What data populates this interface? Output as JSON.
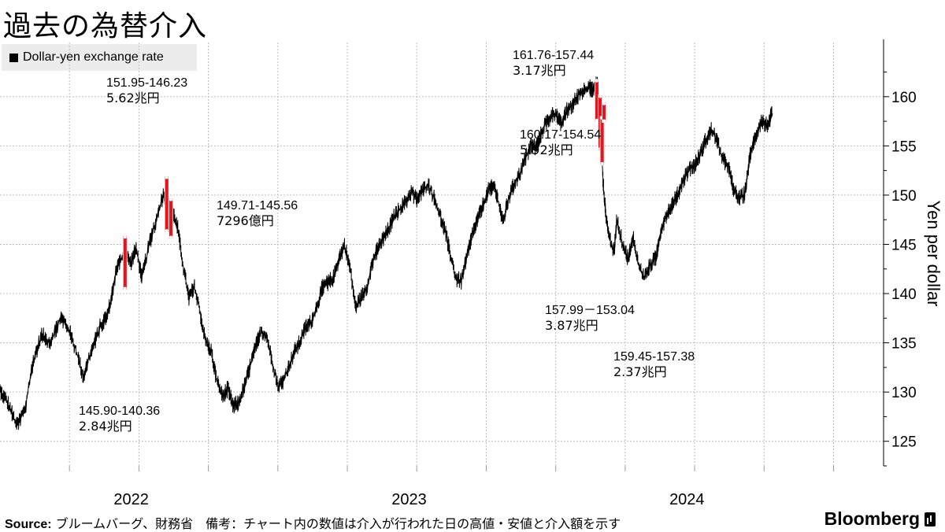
{
  "title": "過去の為替介入",
  "legend": "Dollar-yen exchange rate",
  "source_label": "Source:",
  "source_text": " ブルームバーグ、財務省　備考：チャート内の数値は介入が行われた日の高値・安値と介入額を示す",
  "brand": "Bloomberg",
  "brand_icon": "bloomberg-terminal-icon",
  "chart_data": {
    "type": "line",
    "title": "過去の為替介入",
    "ylabel": "Yen per dollar",
    "xlabel": "",
    "ylim": [
      122.5,
      165.5
    ],
    "xlim": [
      2021.5,
      2024.68
    ],
    "yticks": [
      125,
      130,
      135,
      140,
      145,
      150,
      155,
      160
    ],
    "xticks": [
      {
        "label": "2022",
        "x": 2022.0
      },
      {
        "label": "2023",
        "x": 2023.0
      },
      {
        "label": "2024",
        "x": 2024.0
      }
    ],
    "grid": true,
    "legend_position": "top-left",
    "line_color": "#000000",
    "highlight_color": "#e8141c",
    "series": [
      {
        "name": "Dollar-yen exchange rate",
        "points": [
          [
            2021.5,
            130.2
          ],
          [
            2021.53,
            128.8
          ],
          [
            2021.56,
            126.6
          ],
          [
            2021.59,
            128.2
          ],
          [
            2021.62,
            133.2
          ],
          [
            2021.65,
            135.8
          ],
          [
            2021.68,
            135.1
          ],
          [
            2021.72,
            137.6
          ],
          [
            2021.75,
            136.2
          ],
          [
            2021.78,
            133.6
          ],
          [
            2021.8,
            131.6
          ],
          [
            2021.83,
            134.2
          ],
          [
            2021.86,
            136.6
          ],
          [
            2021.89,
            138.1
          ],
          [
            2021.92,
            142.6
          ],
          [
            2021.95,
            144.2
          ],
          [
            2021.97,
            143.1
          ],
          [
            2021.99,
            144.6
          ],
          [
            2022.01,
            141.6
          ],
          [
            2022.04,
            145.3
          ],
          [
            2022.07,
            148.2
          ],
          [
            2022.09,
            150.3
          ],
          [
            2022.1,
            147.6
          ],
          [
            2022.12,
            148.6
          ],
          [
            2022.14,
            146.6
          ],
          [
            2022.16,
            142.6
          ],
          [
            2022.18,
            139.6
          ],
          [
            2022.2,
            140.6
          ],
          [
            2022.22,
            138.1
          ],
          [
            2022.24,
            135.1
          ],
          [
            2022.26,
            134.2
          ],
          [
            2022.28,
            131.2
          ],
          [
            2022.3,
            129.6
          ],
          [
            2022.32,
            130.3
          ],
          [
            2022.34,
            128.6
          ],
          [
            2022.36,
            128.9
          ],
          [
            2022.38,
            130.6
          ],
          [
            2022.4,
            132.6
          ],
          [
            2022.42,
            134.6
          ],
          [
            2022.44,
            136.2
          ],
          [
            2022.46,
            135.6
          ],
          [
            2022.48,
            133.1
          ],
          [
            2022.5,
            130.6
          ],
          [
            2022.52,
            131.1
          ],
          [
            2022.54,
            132.6
          ],
          [
            2022.56,
            134.1
          ],
          [
            2022.58,
            135.1
          ],
          [
            2022.6,
            136.6
          ],
          [
            2022.62,
            137.1
          ],
          [
            2022.64,
            138.6
          ],
          [
            2022.66,
            140.6
          ],
          [
            2022.68,
            141.1
          ],
          [
            2022.7,
            141.6
          ],
          [
            2022.72,
            143.6
          ],
          [
            2022.74,
            144.9
          ],
          [
            2022.76,
            142.6
          ],
          [
            2022.78,
            138.6
          ],
          [
            2022.8,
            139.6
          ],
          [
            2022.82,
            140.6
          ],
          [
            2022.84,
            143.1
          ],
          [
            2022.86,
            144.6
          ],
          [
            2022.88,
            145.6
          ],
          [
            2022.9,
            146.6
          ],
          [
            2022.92,
            147.9
          ],
          [
            2022.94,
            148.6
          ],
          [
            2022.96,
            149.3
          ],
          [
            2022.98,
            150.3
          ],
          [
            2023.0,
            149.6
          ],
          [
            2023.02,
            150.4
          ],
          [
            2023.04,
            151.1
          ],
          [
            2023.06,
            149.9
          ],
          [
            2023.08,
            148.2
          ],
          [
            2023.1,
            146.6
          ],
          [
            2023.12,
            144.1
          ],
          [
            2023.14,
            141.6
          ],
          [
            2023.16,
            141.2
          ],
          [
            2023.18,
            143.6
          ],
          [
            2023.2,
            146.1
          ],
          [
            2023.22,
            147.6
          ],
          [
            2023.24,
            149.1
          ],
          [
            2023.26,
            150.6
          ],
          [
            2023.28,
            150.9
          ],
          [
            2023.3,
            148.6
          ],
          [
            2023.31,
            147.2
          ],
          [
            2023.33,
            149.6
          ],
          [
            2023.35,
            151.1
          ],
          [
            2023.37,
            152.1
          ],
          [
            2023.39,
            153.6
          ],
          [
            2023.41,
            155.1
          ],
          [
            2023.43,
            154.9
          ],
          [
            2023.44,
            155.6
          ],
          [
            2023.46,
            157.1
          ],
          [
            2023.48,
            157.9
          ],
          [
            2023.5,
            158.4
          ],
          [
            2023.52,
            157.1
          ],
          [
            2023.54,
            158.6
          ],
          [
            2023.56,
            159.1
          ],
          [
            2023.58,
            160.1
          ],
          [
            2023.6,
            160.6
          ],
          [
            2023.62,
            161.1
          ],
          [
            2023.63,
            160.6
          ],
          [
            2023.65,
            161.4
          ],
          [
            2023.66,
            158.2
          ],
          [
            2023.67,
            151.6
          ],
          [
            2023.68,
            148.1
          ],
          [
            2023.69,
            146.1
          ],
          [
            2023.71,
            144.1
          ],
          [
            2023.72,
            147.6
          ],
          [
            2023.74,
            145.1
          ],
          [
            2023.76,
            143.6
          ],
          [
            2023.78,
            145.6
          ],
          [
            2023.8,
            142.6
          ],
          [
            2023.82,
            141.6
          ],
          [
            2023.84,
            142.9
          ],
          [
            2023.86,
            143.6
          ],
          [
            2023.88,
            146.6
          ],
          [
            2023.9,
            148.1
          ],
          [
            2023.92,
            149.1
          ],
          [
            2023.94,
            150.1
          ],
          [
            2023.96,
            151.6
          ],
          [
            2023.98,
            152.6
          ],
          [
            2024.0,
            153.1
          ],
          [
            2024.02,
            154.1
          ],
          [
            2024.04,
            155.6
          ],
          [
            2024.06,
            156.6
          ],
          [
            2024.08,
            155.6
          ],
          [
            2024.1,
            153.6
          ],
          [
            2024.12,
            153.1
          ],
          [
            2024.14,
            150.6
          ],
          [
            2024.16,
            149.6
          ],
          [
            2024.18,
            150.1
          ],
          [
            2024.2,
            154.1
          ],
          [
            2024.22,
            156.1
          ],
          [
            2024.24,
            157.6
          ],
          [
            2024.26,
            157.1
          ],
          [
            2024.28,
            158.3
          ]
        ]
      }
    ],
    "x_axis_mapping_note": "",
    "intervention_bars": [
      {
        "x": 2021.95,
        "high": 145.9,
        "low": 140.36
      },
      {
        "x": 2022.1,
        "high": 151.95,
        "low": 146.23
      },
      {
        "x": 2022.115,
        "high": 149.71,
        "low": 145.56
      },
      {
        "x": 2023.648,
        "high": 161.76,
        "low": 157.44
      },
      {
        "x": 2023.66,
        "high": 160.17,
        "low": 154.54
      },
      {
        "x": 2023.667,
        "high": 157.99,
        "low": 153.04
      },
      {
        "x": 2023.674,
        "high": 159.45,
        "low": 157.38
      }
    ],
    "annotations": [
      {
        "range": "145.90-140.36",
        "amount": "2.84兆円"
      },
      {
        "range": "151.95-146.23",
        "amount": "5.62兆円"
      },
      {
        "range": "149.71-145.56",
        "amount": "7296億円"
      },
      {
        "range": "161.76-157.44",
        "amount": "3.17兆円"
      },
      {
        "range": "160.17-154.54",
        "amount": "5.92兆円"
      },
      {
        "range": "157.99－153.04",
        "amount": "3.87兆円"
      },
      {
        "range": "159.45-157.38",
        "amount": "2.37兆円"
      }
    ]
  }
}
